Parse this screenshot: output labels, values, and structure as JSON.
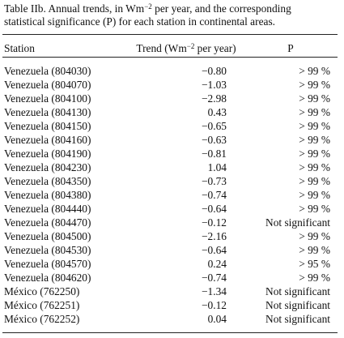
{
  "caption": {
    "line1_pre": "Table IIb. Annual trends, in Wm",
    "line1_sup": "−2",
    "line1_post": " per year, and the corresponding",
    "line2": "statistical significance (P) for each station in continental areas."
  },
  "header": {
    "station": "Station",
    "trend_pre": "Trend (Wm",
    "trend_sup": "−2",
    "trend_post": " per year)",
    "p": "P"
  },
  "rows": [
    {
      "station": "Venezuela (804030)",
      "trend": "−0.80",
      "p": "> 99 %"
    },
    {
      "station": "Venezuela (804070)",
      "trend": "−1.03",
      "p": "> 99 %"
    },
    {
      "station": "Venezuela (804100)",
      "trend": "−2.98",
      "p": "> 99 %"
    },
    {
      "station": "Venezuela (804130)",
      "trend": "0.43",
      "p": "> 99 %"
    },
    {
      "station": "Venezuela (804150)",
      "trend": "−0.65",
      "p": "> 99 %"
    },
    {
      "station": "Venezuela (804160)",
      "trend": "−0.63",
      "p": "> 99 %"
    },
    {
      "station": "Venezuela (804190)",
      "trend": "−0.81",
      "p": "> 99 %"
    },
    {
      "station": "Venezuela (804230)",
      "trend": "1.04",
      "p": "> 99 %"
    },
    {
      "station": "Venezuela (804350)",
      "trend": "−0.73",
      "p": "> 99 %"
    },
    {
      "station": "Venezuela (804380)",
      "trend": "−0.74",
      "p": "> 99 %"
    },
    {
      "station": "Venezuela (804440)",
      "trend": "−0.64",
      "p": "> 99 %"
    },
    {
      "station": "Venezuela (804470)",
      "trend": "−0.12",
      "p": "Not significant"
    },
    {
      "station": "Venezuela (804500)",
      "trend": "−2.16",
      "p": "> 99 %"
    },
    {
      "station": "Venezuela (804530)",
      "trend": "−0.64",
      "p": "> 99 %"
    },
    {
      "station": "Venezuela (804570)",
      "trend": "0.24",
      "p": "> 95 %"
    },
    {
      "station": "Venezuela (804620)",
      "trend": "−0.74",
      "p": "> 99 %"
    },
    {
      "station": "México (762250)",
      "trend": "−1.34",
      "p": "Not significant"
    },
    {
      "station": "México (762251)",
      "trend": "−0.12",
      "p": "Not significant"
    },
    {
      "station": "México (762252)",
      "trend": "0.04",
      "p": "Not significant"
    }
  ]
}
